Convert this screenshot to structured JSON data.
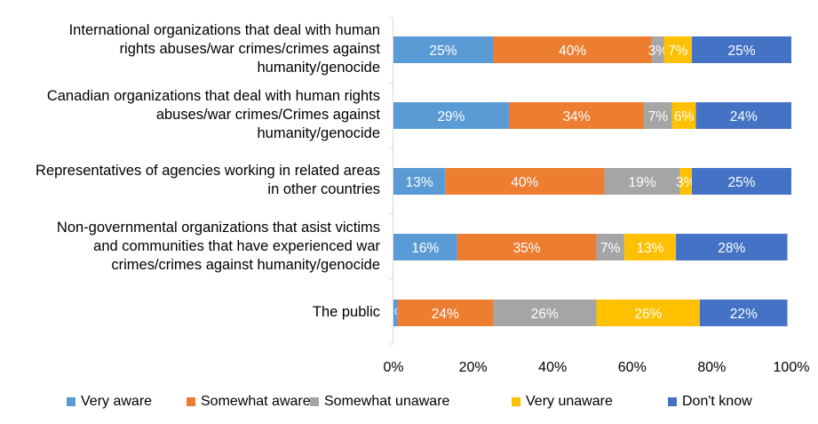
{
  "chart_data": {
    "type": "bar",
    "orientation": "horizontal",
    "stacked": true,
    "categories": [
      "International organizations that deal with human rights abuses/war crimes/crimes against humanity/genocide",
      "Canadian organizations that deal with human rights abuses/war crimes/Crimes against humanity/genocide",
      "Representatives of agencies working in related areas in other countries",
      "Non-governmental organizations that asist victims and communities that have experienced war crimes/crimes against humanity/genocide",
      "The public"
    ],
    "category_lines": [
      [
        "International organizations that deal with human",
        "rights abuses/war crimes/crimes against",
        "humanity/genocide"
      ],
      [
        "Canadian organizations that deal with human rights",
        "abuses/war crimes/Crimes against",
        "humanity/genocide"
      ],
      [
        "Representatives of agencies working in related areas",
        "in other countries"
      ],
      [
        "Non-governmental organizations that asist victims",
        "and communities that have experienced war",
        "crimes/crimes against humanity/genocide"
      ],
      [
        "The public"
      ]
    ],
    "series": [
      {
        "name": "Very aware",
        "color": "#5b9bd5",
        "values": [
          25,
          29,
          13,
          16,
          1
        ],
        "labels": [
          "25%",
          "29%",
          "13%",
          "16%",
          "%"
        ]
      },
      {
        "name": "Somewhat aware",
        "color": "#ed7d31",
        "values": [
          40,
          34,
          40,
          35,
          24
        ],
        "labels": [
          "40%",
          "34%",
          "40%",
          "35%",
          "24%"
        ]
      },
      {
        "name": "Somewhat unaware",
        "color": "#a5a5a5",
        "values": [
          3,
          7,
          19,
          7,
          26
        ],
        "labels": [
          "3%",
          "7%",
          "19%",
          "7%",
          "26%"
        ]
      },
      {
        "name": "Very unaware",
        "color": "#ffc000",
        "values": [
          7,
          6,
          3,
          13,
          26
        ],
        "labels": [
          "7%",
          "6%",
          "3%",
          "13%",
          "26%"
        ]
      },
      {
        "name": "Don't know",
        "color": "#4472c4",
        "values": [
          25,
          24,
          25,
          28,
          22
        ],
        "labels": [
          "25%",
          "24%",
          "25%",
          "28%",
          "22%"
        ]
      }
    ],
    "xlim": [
      0,
      100
    ],
    "xticks": [
      "0%",
      "20%",
      "40%",
      "60%",
      "80%",
      "100%"
    ],
    "legend_position": "bottom",
    "grid": false
  }
}
